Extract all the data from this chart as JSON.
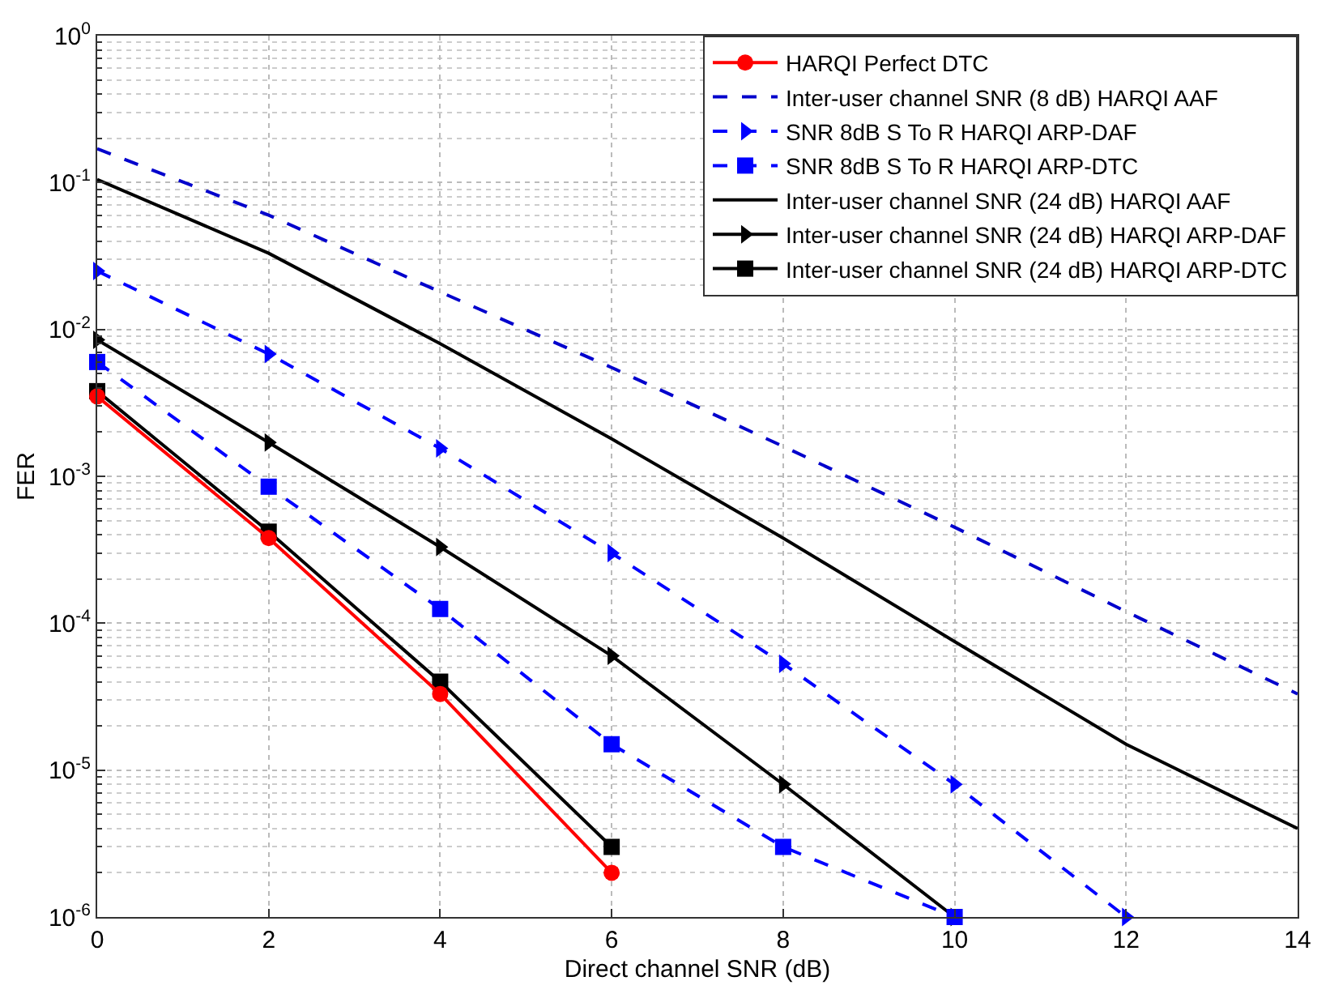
{
  "chart_data": {
    "type": "line",
    "xlabel": "Direct channel SNR (dB)",
    "ylabel": "FER",
    "x": [
      0,
      2,
      4,
      6,
      8,
      10,
      12,
      14
    ],
    "xlim": [
      0,
      14
    ],
    "xticks": [
      0,
      2,
      4,
      6,
      8,
      10,
      12,
      14
    ],
    "log": "y",
    "ylim": [
      1e-06,
      1
    ],
    "yticks": [
      {
        "value": 1e-06,
        "label": "10$^{-6}$"
      },
      {
        "value": 1e-05,
        "label": "10$^{-5}$"
      },
      {
        "value": 0.0001,
        "label": "10$^{-4}$"
      },
      {
        "value": 0.001,
        "label": "10$^{-3}$"
      },
      {
        "value": 0.01,
        "label": "10$^{-2}$"
      },
      {
        "value": 0.1,
        "label": "10$^{-1}$"
      },
      {
        "value": 1,
        "label": "10$^{0}$"
      }
    ],
    "grid": true,
    "legend": "top right",
    "series": [
      {
        "name": "HARQI Perfect DTC",
        "color": "#ff0000",
        "marker": "circle",
        "line_style": "solid",
        "values": [
          0.0035,
          0.00038,
          3.3e-05,
          2e-06,
          null,
          null,
          null,
          null
        ]
      },
      {
        "name": "Inter-user channel SNR (8 dB) HARQI AAF",
        "color": "#0000cc",
        "marker": "none",
        "line_style": "dashed",
        "values": [
          0.17,
          0.06,
          0.018,
          0.0055,
          0.0016,
          0.00045,
          0.00012,
          3.3e-05
        ]
      },
      {
        "name": "SNR 8dB S To R HARQI ARP-DAF",
        "color": "#0000ff",
        "marker": "triangle",
        "line_style": "dashed",
        "values": [
          0.025,
          0.0068,
          0.00155,
          0.0003,
          5.3e-05,
          8e-06,
          1e-06,
          null
        ]
      },
      {
        "name": "SNR 8dB S To R HARQI ARP-DTC",
        "color": "#0000ff",
        "marker": "square",
        "line_style": "dashed",
        "values": [
          0.006,
          0.00085,
          0.000125,
          1.5e-05,
          3e-06,
          1e-06,
          null,
          null
        ]
      },
      {
        "name": "Inter-user channel SNR (24 dB) HARQI AAF",
        "color": "#000000",
        "marker": "none",
        "line_style": "solid",
        "values": [
          0.105,
          0.033,
          0.008,
          0.0018,
          0.00038,
          7.5e-05,
          1.5e-05,
          4e-06
        ]
      },
      {
        "name": "Inter-user channel SNR (24 dB) HARQI ARP-DAF",
        "color": "#000000",
        "marker": "triangle",
        "line_style": "solid",
        "values": [
          0.0085,
          0.0017,
          0.00033,
          6e-05,
          8e-06,
          1e-06,
          null,
          null
        ]
      },
      {
        "name": "Inter-user channel SNR (24 dB) HARQI ARP-DTC",
        "color": "#000000",
        "marker": "square",
        "line_style": "solid",
        "values": [
          0.0038,
          0.00042,
          4e-05,
          3e-06,
          null,
          null,
          null,
          null
        ]
      }
    ]
  }
}
